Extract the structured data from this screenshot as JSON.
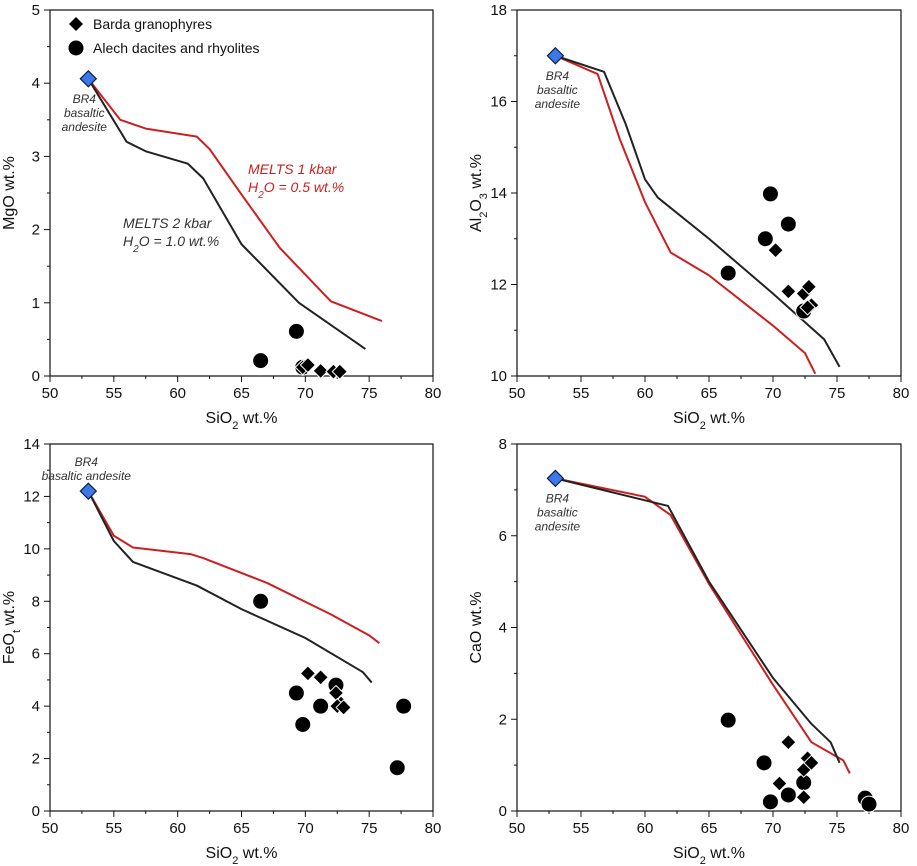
{
  "chart_data": [
    {
      "type": "scatter",
      "id": "mgo",
      "xlabel_main": "SiO",
      "xlabel_sub": "2",
      "xlabel_tail": " wt.%",
      "ylabel_main": "MgO wt.%",
      "ylabel_sub": "",
      "ylabel_tail": "",
      "xlim": [
        50,
        80
      ],
      "ylim": [
        0,
        5
      ],
      "xticks": [
        "50",
        "55",
        "60",
        "65",
        "70",
        "75",
        "80"
      ],
      "yticks": [
        "0",
        "1",
        "2",
        "3",
        "4",
        "5"
      ],
      "legend": {
        "granophyres": "Barda granophyres",
        "dacites": "Alech dacites and rhyolites"
      },
      "annotation": {
        "line1": "BR4",
        "line2": "basaltic",
        "line3": "andesite"
      },
      "melts_labels": {
        "red_line1": "MELTS 1 kbar",
        "red_line2_main": "H",
        "red_line2_sub": "2",
        "red_line2_tail": "O = 0.5 wt.%",
        "black_line1": "MELTS 2 kbar",
        "black_line2_main": "H",
        "black_line2_sub": "2",
        "black_line2_tail": "O = 1.0 wt.%"
      },
      "start_point": [
        53,
        4.06
      ],
      "series": [
        {
          "name": "MELTS 1 kbar",
          "color": "#cc1f1f",
          "kind": "line",
          "points": [
            [
              53,
              4.06
            ],
            [
              55.5,
              3.5
            ],
            [
              57.5,
              3.38
            ],
            [
              61.5,
              3.27
            ],
            [
              62.5,
              3.1
            ],
            [
              65,
              2.48
            ],
            [
              68,
              1.75
            ],
            [
              72,
              1.02
            ],
            [
              76,
              0.75
            ]
          ]
        },
        {
          "name": "MELTS 2 kbar",
          "color": "#222222",
          "kind": "line",
          "points": [
            [
              53,
              4.06
            ],
            [
              56,
              3.2
            ],
            [
              57.5,
              3.07
            ],
            [
              60.8,
              2.9
            ],
            [
              62,
              2.7
            ],
            [
              65,
              1.8
            ],
            [
              69.5,
              1.0
            ],
            [
              74.7,
              0.37
            ]
          ]
        },
        {
          "name": "Barda granophyres",
          "color": "#000000",
          "kind": "diamond",
          "points": [
            [
              69.8,
              0.12
            ],
            [
              70.2,
              0.15
            ],
            [
              71.2,
              0.07
            ],
            [
              72.2,
              0.06
            ],
            [
              72.7,
              0.06
            ]
          ]
        },
        {
          "name": "Alech dacites and rhyolites",
          "color": "#000000",
          "kind": "circle",
          "points": [
            [
              66.5,
              0.21
            ],
            [
              69.3,
              0.61
            ],
            [
              69.8,
              0.12
            ]
          ]
        }
      ]
    },
    {
      "type": "scatter",
      "id": "al2o3",
      "xlabel_main": "SiO",
      "xlabel_sub": "2",
      "xlabel_tail": " wt.%",
      "ylabel_main": "Al",
      "ylabel_sub": "2",
      "ylabel_tail": "O",
      "ylabel_sub2": "3",
      "ylabel_tail2": " wt.%",
      "xlim": [
        50,
        80
      ],
      "ylim": [
        10,
        18
      ],
      "xticks": [
        "50",
        "55",
        "60",
        "65",
        "70",
        "75",
        "80"
      ],
      "yticks": [
        "10",
        "12",
        "14",
        "16",
        "18"
      ],
      "annotation": {
        "line1": "BR4",
        "line2": "basaltic",
        "line3": "andesite"
      },
      "start_point": [
        53,
        17.0
      ],
      "series": [
        {
          "name": "MELTS 1 kbar",
          "color": "#cc1f1f",
          "kind": "line",
          "points": [
            [
              53,
              17.0
            ],
            [
              56.3,
              16.6
            ],
            [
              58,
              15.2
            ],
            [
              60,
              13.8
            ],
            [
              62,
              12.7
            ],
            [
              65,
              12.2
            ],
            [
              70,
              11.1
            ],
            [
              72.5,
              10.5
            ],
            [
              73.3,
              10.05
            ]
          ]
        },
        {
          "name": "MELTS 2 kbar",
          "color": "#222222",
          "kind": "line",
          "points": [
            [
              53,
              17.0
            ],
            [
              56.8,
              16.65
            ],
            [
              58.5,
              15.5
            ],
            [
              60,
              14.3
            ],
            [
              61,
              13.9
            ],
            [
              65,
              13.0
            ],
            [
              70,
              11.8
            ],
            [
              74,
              10.8
            ],
            [
              75.2,
              10.2
            ]
          ]
        },
        {
          "name": "Barda granophyres",
          "color": "#000000",
          "kind": "diamond",
          "points": [
            [
              70.2,
              12.75
            ],
            [
              71.2,
              11.85
            ],
            [
              72.4,
              11.8
            ],
            [
              72.8,
              11.95
            ],
            [
              73.0,
              11.55
            ],
            [
              72.7,
              11.5
            ]
          ]
        },
        {
          "name": "Alech dacites and rhyolites",
          "color": "#000000",
          "kind": "circle",
          "points": [
            [
              66.5,
              12.25
            ],
            [
              69.4,
              13.0
            ],
            [
              69.8,
              13.98
            ],
            [
              71.2,
              13.32
            ],
            [
              72.4,
              11.42
            ]
          ]
        }
      ]
    },
    {
      "type": "scatter",
      "id": "feo",
      "xlabel_main": "SiO",
      "xlabel_sub": "2",
      "xlabel_tail": " wt.%",
      "ylabel_main": "FeO",
      "ylabel_sub": "t",
      "ylabel_tail": " wt.%",
      "xlim": [
        50,
        80
      ],
      "ylim": [
        0,
        14
      ],
      "xticks": [
        "50",
        "55",
        "60",
        "65",
        "70",
        "75",
        "80"
      ],
      "yticks": [
        "0",
        "2",
        "4",
        "6",
        "8",
        "10",
        "12",
        "14"
      ],
      "annotation": {
        "line1": "BR4",
        "line2": "basaltic andesite"
      },
      "start_point": [
        53,
        12.2
      ],
      "series": [
        {
          "name": "MELTS 1 kbar",
          "color": "#cc1f1f",
          "kind": "line",
          "points": [
            [
              53,
              12.2
            ],
            [
              55,
              10.5
            ],
            [
              56.5,
              10.05
            ],
            [
              61,
              9.8
            ],
            [
              62,
              9.65
            ],
            [
              67,
              8.7
            ],
            [
              72,
              7.5
            ],
            [
              75,
              6.7
            ],
            [
              75.8,
              6.4
            ]
          ]
        },
        {
          "name": "MELTS 2 kbar",
          "color": "#222222",
          "kind": "line",
          "points": [
            [
              53,
              12.2
            ],
            [
              55,
              10.3
            ],
            [
              56.5,
              9.5
            ],
            [
              61.5,
              8.6
            ],
            [
              65,
              7.7
            ],
            [
              70,
              6.6
            ],
            [
              74.5,
              5.3
            ],
            [
              75.2,
              4.9
            ]
          ]
        },
        {
          "name": "Barda granophyres",
          "color": "#000000",
          "kind": "diamond",
          "points": [
            [
              70.2,
              5.25
            ],
            [
              71.2,
              5.1
            ],
            [
              72.4,
              4.5
            ],
            [
              72.8,
              4.1
            ],
            [
              72.5,
              4.0
            ],
            [
              73.0,
              3.95
            ]
          ]
        },
        {
          "name": "Alech dacites and rhyolites",
          "color": "#000000",
          "kind": "circle",
          "points": [
            [
              66.5,
              8.0
            ],
            [
              69.3,
              4.5
            ],
            [
              69.8,
              3.3
            ],
            [
              71.2,
              4.0
            ],
            [
              72.4,
              4.8
            ],
            [
              77.2,
              1.65
            ],
            [
              77.7,
              4.0
            ]
          ]
        }
      ]
    },
    {
      "type": "scatter",
      "id": "cao",
      "xlabel_main": "SiO",
      "xlabel_sub": "2",
      "xlabel_tail": " wt.%",
      "ylabel_main": "CaO wt.%",
      "ylabel_sub": "",
      "ylabel_tail": "",
      "xlim": [
        50,
        80
      ],
      "ylim": [
        0,
        8
      ],
      "xticks": [
        "50",
        "55",
        "60",
        "65",
        "70",
        "75",
        "80"
      ],
      "yticks": [
        "0",
        "2",
        "4",
        "6",
        "8"
      ],
      "annotation": {
        "line1": "BR4",
        "line2": "basaltic",
        "line3": "andesite"
      },
      "start_point": [
        53,
        7.25
      ],
      "series": [
        {
          "name": "MELTS 1 kbar",
          "color": "#cc1f1f",
          "kind": "line",
          "points": [
            [
              53,
              7.25
            ],
            [
              60,
              6.85
            ],
            [
              62,
              6.45
            ],
            [
              65,
              4.95
            ],
            [
              70,
              2.75
            ],
            [
              73,
              1.5
            ],
            [
              75.5,
              1.1
            ],
            [
              76,
              0.82
            ]
          ]
        },
        {
          "name": "MELTS 2 kbar",
          "color": "#222222",
          "kind": "line",
          "points": [
            [
              53,
              7.25
            ],
            [
              61.8,
              6.65
            ],
            [
              65,
              5.0
            ],
            [
              70,
              2.9
            ],
            [
              73,
              1.9
            ],
            [
              74.5,
              1.5
            ],
            [
              75.2,
              1.05
            ]
          ]
        },
        {
          "name": "Barda granophyres",
          "color": "#000000",
          "kind": "diamond",
          "points": [
            [
              70.5,
              0.6
            ],
            [
              71.2,
              1.5
            ],
            [
              72.4,
              0.9
            ],
            [
              72.7,
              1.15
            ],
            [
              73.0,
              1.05
            ],
            [
              72.4,
              0.3
            ]
          ]
        },
        {
          "name": "Alech dacites and rhyolites",
          "color": "#000000",
          "kind": "circle",
          "points": [
            [
              66.5,
              1.98
            ],
            [
              69.3,
              1.05
            ],
            [
              69.8,
              0.2
            ],
            [
              71.2,
              0.35
            ],
            [
              72.4,
              0.62
            ],
            [
              77.2,
              0.28
            ],
            [
              77.5,
              0.15
            ]
          ]
        }
      ]
    }
  ]
}
